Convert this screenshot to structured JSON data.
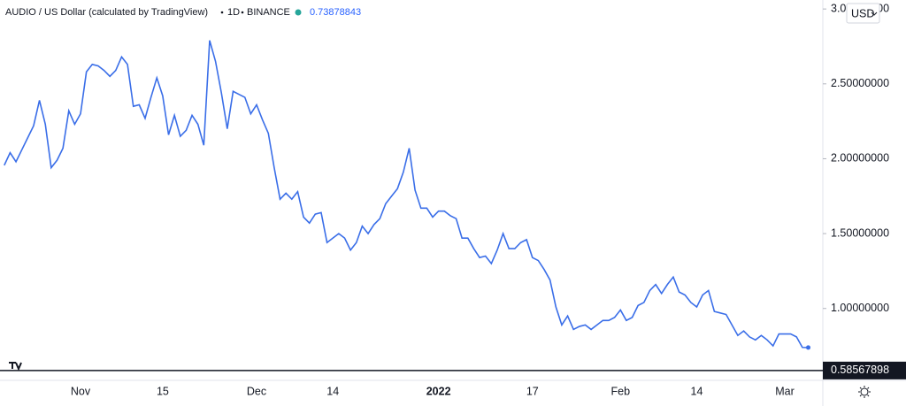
{
  "header": {
    "symbol": "AUDIO / US Dollar (calculated by TradingView)",
    "interval": "1D",
    "exchange": "BINANCE",
    "last_price": "0.73878843",
    "currency": "USD"
  },
  "chart_data": {
    "type": "line",
    "categories": [
      null,
      null,
      null,
      null,
      null,
      null,
      null,
      null,
      null,
      null,
      null,
      null,
      null,
      "Nov",
      null,
      null,
      null,
      null,
      null,
      null,
      null,
      null,
      null,
      null,
      null,
      null,
      null,
      "15",
      null,
      null,
      null,
      null,
      null,
      null,
      null,
      null,
      null,
      null,
      null,
      null,
      null,
      null,
      null,
      "Dec",
      null,
      null,
      null,
      null,
      null,
      null,
      null,
      null,
      null,
      null,
      null,
      null,
      "14",
      null,
      null,
      null,
      null,
      null,
      null,
      null,
      null,
      null,
      null,
      null,
      null,
      null,
      null,
      null,
      null,
      null,
      "2022",
      null,
      null,
      null,
      null,
      null,
      null,
      null,
      null,
      null,
      null,
      null,
      null,
      null,
      null,
      null,
      "17",
      null,
      null,
      null,
      null,
      null,
      null,
      null,
      null,
      null,
      null,
      null,
      null,
      null,
      null,
      "Feb",
      null,
      null,
      null,
      null,
      null,
      null,
      null,
      null,
      null,
      null,
      null,
      null,
      "14",
      null,
      null,
      null,
      null,
      null,
      null,
      null,
      null,
      null,
      null,
      null,
      null,
      null,
      null,
      "Mar",
      null,
      null,
      null,
      null
    ],
    "series": [
      {
        "name": "AUDIO / US Dollar",
        "color": "#3a6ee8",
        "values": [
          1.956,
          2.04,
          1.98,
          2.06,
          2.14,
          2.22,
          2.39,
          2.23,
          1.94,
          1.99,
          2.07,
          2.32,
          2.23,
          2.3,
          2.58,
          2.63,
          2.62,
          2.59,
          2.55,
          2.59,
          2.68,
          2.63,
          2.35,
          2.36,
          2.27,
          2.41,
          2.54,
          2.42,
          2.16,
          2.29,
          2.15,
          2.19,
          2.29,
          2.23,
          2.09,
          2.79,
          2.65,
          2.44,
          2.2,
          2.45,
          2.43,
          2.41,
          2.3,
          2.36,
          2.26,
          2.17,
          1.94,
          1.73,
          1.77,
          1.73,
          1.78,
          1.61,
          1.57,
          1.63,
          1.64,
          1.44,
          1.47,
          1.5,
          1.47,
          1.39,
          1.44,
          1.55,
          1.5,
          1.56,
          1.6,
          1.7,
          1.75,
          1.8,
          1.91,
          2.07,
          1.79,
          1.67,
          1.67,
          1.61,
          1.65,
          1.65,
          1.62,
          1.6,
          1.47,
          1.47,
          1.4,
          1.34,
          1.35,
          1.3,
          1.39,
          1.5,
          1.4,
          1.4,
          1.44,
          1.46,
          1.34,
          1.32,
          1.26,
          1.19,
          1.01,
          0.89,
          0.95,
          0.86,
          0.88,
          0.89,
          0.86,
          0.89,
          0.92,
          0.92,
          0.94,
          0.99,
          0.92,
          0.94,
          1.02,
          1.04,
          1.12,
          1.16,
          1.1,
          1.16,
          1.21,
          1.11,
          1.09,
          1.04,
          1.01,
          1.09,
          1.12,
          0.98,
          0.97,
          0.96,
          0.89,
          0.82,
          0.85,
          0.81,
          0.79,
          0.82,
          0.79,
          0.75,
          0.83,
          0.83,
          0.83,
          0.81,
          0.74,
          0.739
        ]
      }
    ],
    "ylim": [
      0.52,
      3.06
    ],
    "yticks": [
      {
        "value": 1,
        "label": "1.00000000"
      },
      {
        "value": 1.5,
        "label": "1.50000000"
      },
      {
        "value": 2,
        "label": "2.00000000"
      },
      {
        "value": 2.5,
        "label": "2.50000000"
      },
      {
        "value": 3,
        "label": "3.00000000"
      }
    ],
    "price_line": {
      "value": 0.58567898,
      "label": "0.58567898"
    },
    "grid": false
  }
}
